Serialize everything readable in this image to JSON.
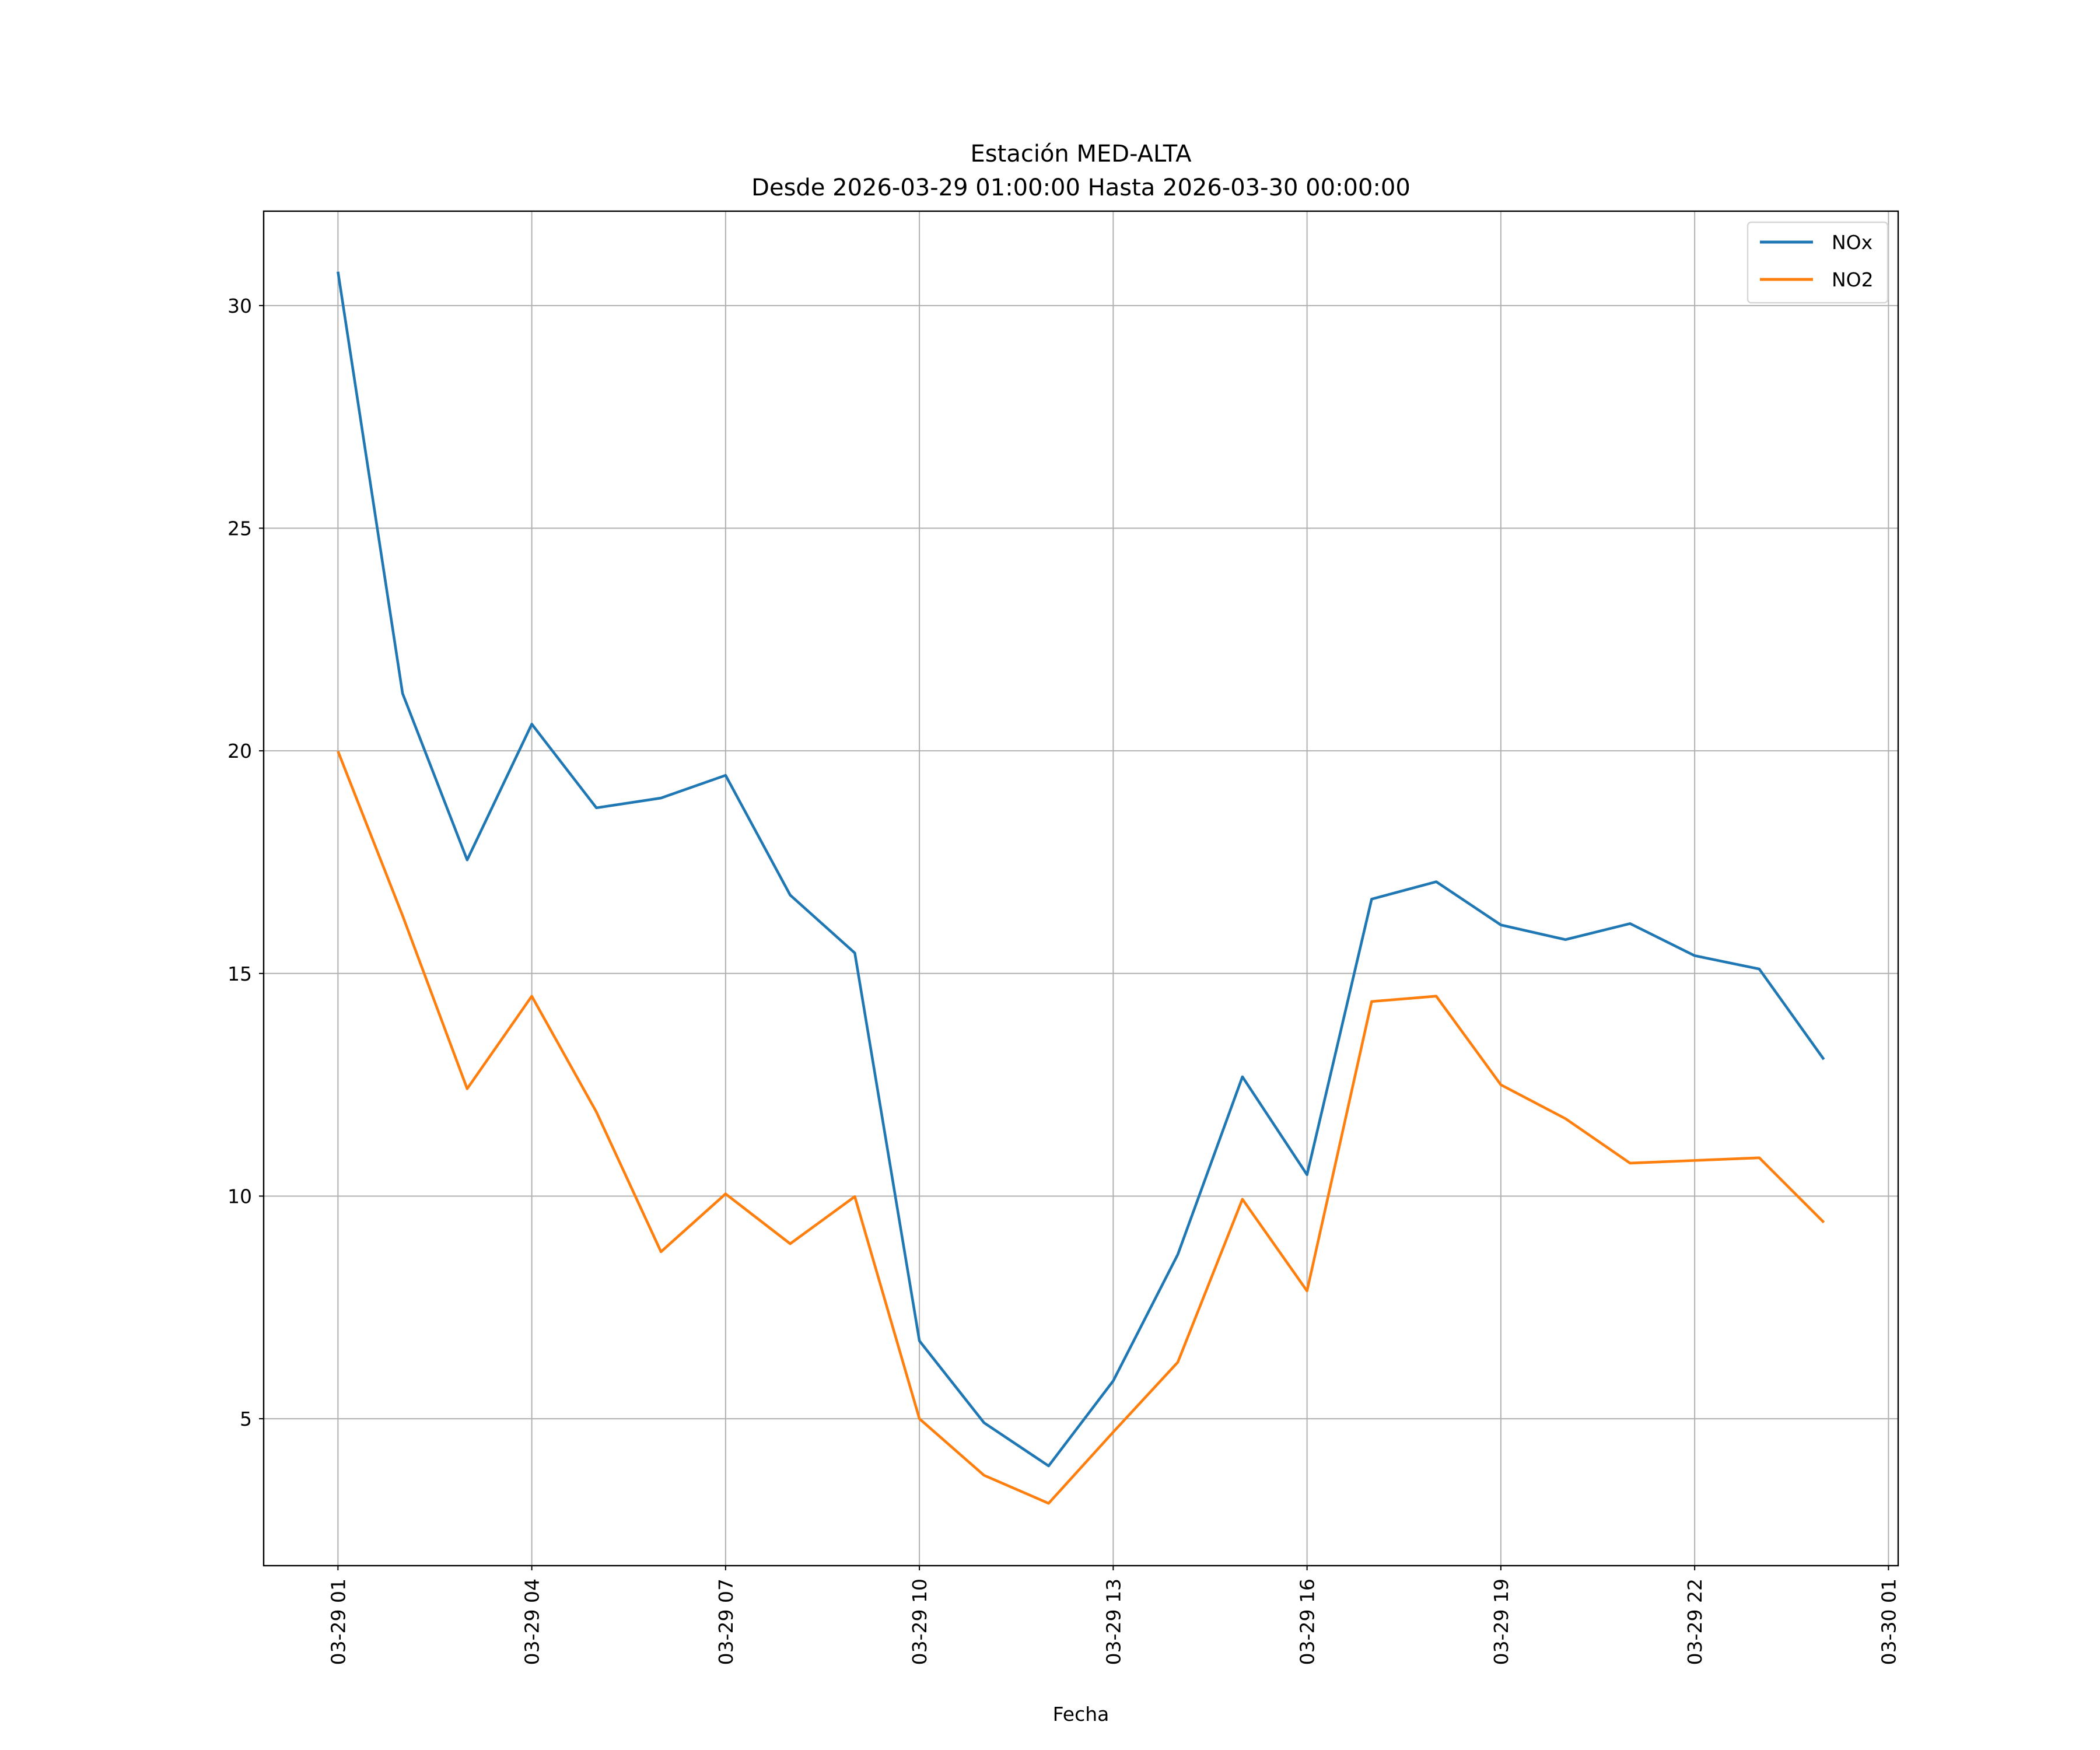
{
  "chart_data": {
    "type": "line",
    "title": "Estación MED-ALTA",
    "subtitle": "Desde 2026-03-29 01:00:00 Hasta 2026-03-30 00:00:00",
    "xlabel": "Fecha",
    "ylabel": "",
    "x_hours": [
      1,
      2,
      3,
      4,
      5,
      6,
      7,
      8,
      9,
      10,
      11,
      12,
      13,
      14,
      15,
      16,
      17,
      18,
      19,
      20,
      21,
      22,
      23,
      24
    ],
    "x_note": "hours from 2026-03-29 00:00",
    "xlim": [
      -0.15,
      25.15
    ],
    "ylim": [
      1.7,
      32.12
    ],
    "x_ticks": [
      {
        "value": 1,
        "label": "03-29 01"
      },
      {
        "value": 4,
        "label": "03-29 04"
      },
      {
        "value": 7,
        "label": "03-29 07"
      },
      {
        "value": 10,
        "label": "03-29 10"
      },
      {
        "value": 13,
        "label": "03-29 13"
      },
      {
        "value": 16,
        "label": "03-29 16"
      },
      {
        "value": 19,
        "label": "03-29 19"
      },
      {
        "value": 22,
        "label": "03-29 22"
      },
      {
        "value": 25,
        "label": "03-30 01"
      }
    ],
    "y_ticks": [
      {
        "value": 5,
        "label": "5"
      },
      {
        "value": 10,
        "label": "10"
      },
      {
        "value": 15,
        "label": "15"
      },
      {
        "value": 20,
        "label": "20"
      },
      {
        "value": 25,
        "label": "25"
      },
      {
        "value": 30,
        "label": "30"
      }
    ],
    "grid": true,
    "legend_position": "top-right",
    "series": [
      {
        "name": "NOx",
        "color": "#1f77b4",
        "values": [
          30.76,
          21.29,
          17.55,
          20.6,
          18.72,
          18.94,
          19.45,
          16.76,
          15.46,
          6.75,
          4.91,
          3.94,
          5.85,
          8.69,
          12.68,
          10.48,
          16.67,
          17.06,
          16.09,
          15.76,
          16.12,
          15.4,
          15.1,
          13.07
        ]
      },
      {
        "name": "NO2",
        "color": "#ff7f0e",
        "values": [
          19.99,
          16.3,
          12.41,
          14.49,
          11.89,
          8.75,
          10.05,
          8.93,
          9.99,
          5.0,
          3.73,
          3.1,
          4.7,
          6.27,
          9.93,
          7.87,
          14.37,
          14.49,
          12.5,
          11.74,
          10.74,
          10.8,
          10.86,
          9.41
        ]
      }
    ]
  }
}
